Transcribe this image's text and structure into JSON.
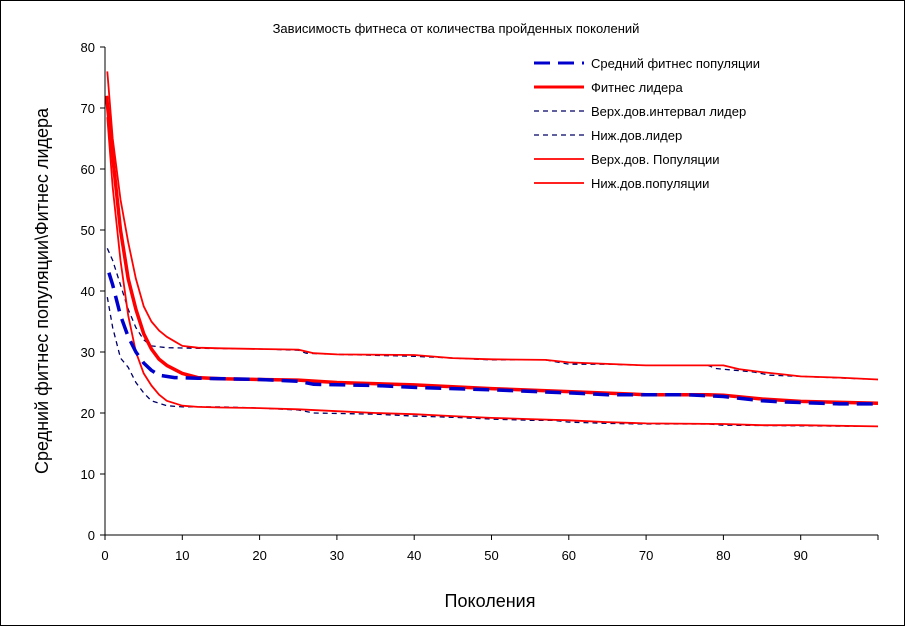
{
  "chart_data": {
    "type": "line",
    "title": "Зависимость фитнеса от количества пройденных поколений",
    "xlabel": "Поколения",
    "ylabel": "Средний фитнес популяции\\Фитнес лидера",
    "xlim": [
      0,
      100
    ],
    "ylim": [
      0,
      80
    ],
    "x_ticks": [
      0,
      10,
      20,
      30,
      40,
      50,
      60,
      70,
      80,
      90
    ],
    "y_ticks": [
      0,
      10,
      20,
      30,
      40,
      50,
      60,
      70,
      80
    ],
    "grid": false,
    "legend_position": "top-right",
    "series": [
      {
        "name": "Средний фитнес популяции",
        "color": "#0000CC",
        "style": "dashed",
        "points": [
          [
            0.5,
            43
          ],
          [
            1,
            41
          ],
          [
            2,
            36
          ],
          [
            3,
            32.5
          ],
          [
            4,
            30
          ],
          [
            5,
            28.2
          ],
          [
            6,
            27
          ],
          [
            7,
            26.2
          ],
          [
            9,
            25.8
          ],
          [
            12,
            25.7
          ],
          [
            20,
            25.5
          ],
          [
            25,
            25.2
          ],
          [
            27,
            24.7
          ],
          [
            35,
            24.5
          ],
          [
            40,
            24.2
          ],
          [
            45,
            24
          ],
          [
            50,
            23.8
          ],
          [
            60,
            23.3
          ],
          [
            65,
            23
          ],
          [
            70,
            23
          ],
          [
            75,
            23
          ],
          [
            80,
            22.7
          ],
          [
            85,
            22
          ],
          [
            88,
            21.8
          ],
          [
            95,
            21.5
          ],
          [
            100,
            21.5
          ]
        ]
      },
      {
        "name": "Фитнес лидера",
        "color": "#FF0000",
        "style": "solid",
        "points": [
          [
            0.2,
            72
          ],
          [
            1,
            62
          ],
          [
            2,
            50
          ],
          [
            3,
            42
          ],
          [
            4,
            37
          ],
          [
            5,
            33
          ],
          [
            6,
            30.5
          ],
          [
            7,
            28.8
          ],
          [
            8,
            27.8
          ],
          [
            10,
            26.5
          ],
          [
            12,
            25.8
          ],
          [
            15,
            25.6
          ],
          [
            20,
            25.5
          ],
          [
            25,
            25.4
          ],
          [
            30,
            25
          ],
          [
            40,
            24.6
          ],
          [
            50,
            24
          ],
          [
            60,
            23.5
          ],
          [
            70,
            23
          ],
          [
            78,
            23
          ],
          [
            80,
            22.9
          ],
          [
            85,
            22.3
          ],
          [
            90,
            21.9
          ],
          [
            100,
            21.6
          ]
        ]
      },
      {
        "name": "Верх.дов.интервал лидер",
        "color": "#000066",
        "style": "dotted",
        "points": [
          [
            0.3,
            47
          ],
          [
            1,
            45
          ],
          [
            2,
            41
          ],
          [
            3,
            37
          ],
          [
            4,
            34
          ],
          [
            5,
            32
          ],
          [
            6,
            31
          ],
          [
            8,
            30.7
          ],
          [
            12,
            30.6
          ],
          [
            20,
            30.5
          ],
          [
            25,
            30.3
          ],
          [
            26,
            29.8
          ],
          [
            30,
            29.6
          ],
          [
            40,
            29.3
          ],
          [
            50,
            28.7
          ],
          [
            57,
            28.7
          ],
          [
            60,
            28
          ],
          [
            65,
            28
          ],
          [
            70,
            27.8
          ],
          [
            78,
            27.8
          ],
          [
            79,
            27.3
          ],
          [
            84,
            26.7
          ],
          [
            86,
            26.2
          ],
          [
            90,
            26
          ],
          [
            100,
            25.5
          ]
        ]
      },
      {
        "name": "Ниж.дов.лидер",
        "color": "#000066",
        "style": "dotted",
        "points": [
          [
            0.3,
            39
          ],
          [
            1,
            34
          ],
          [
            2,
            29
          ],
          [
            3,
            27.5
          ],
          [
            4,
            25
          ],
          [
            5,
            23.3
          ],
          [
            6,
            22
          ],
          [
            8,
            21.2
          ],
          [
            10,
            21
          ],
          [
            15,
            21
          ],
          [
            20,
            20.8
          ],
          [
            25,
            20.5
          ],
          [
            27,
            20
          ],
          [
            35,
            19.8
          ],
          [
            40,
            19.5
          ],
          [
            45,
            19.3
          ],
          [
            50,
            19
          ],
          [
            55,
            18.8
          ],
          [
            58,
            18.8
          ],
          [
            60,
            18.5
          ],
          [
            65,
            18.3
          ],
          [
            70,
            18.2
          ],
          [
            78,
            18.2
          ],
          [
            80,
            18
          ],
          [
            90,
            17.9
          ],
          [
            100,
            17.8
          ]
        ]
      },
      {
        "name": "Верх.дов. Популяции",
        "color": "#FF0000",
        "style": "solid",
        "points": [
          [
            0.3,
            76
          ],
          [
            1,
            65
          ],
          [
            2,
            55
          ],
          [
            3,
            48
          ],
          [
            4,
            42
          ],
          [
            5,
            37.5
          ],
          [
            6,
            35
          ],
          [
            7,
            33.5
          ],
          [
            8,
            32.5
          ],
          [
            10,
            31
          ],
          [
            12,
            30.7
          ],
          [
            15,
            30.6
          ],
          [
            20,
            30.5
          ],
          [
            25,
            30.4
          ],
          [
            27,
            29.8
          ],
          [
            30,
            29.6
          ],
          [
            40,
            29.5
          ],
          [
            45,
            29
          ],
          [
            50,
            28.8
          ],
          [
            57,
            28.7
          ],
          [
            60,
            28.3
          ],
          [
            70,
            27.8
          ],
          [
            80,
            27.8
          ],
          [
            82,
            27.2
          ],
          [
            85,
            26.7
          ],
          [
            88,
            26.3
          ],
          [
            90,
            26
          ],
          [
            95,
            25.8
          ],
          [
            100,
            25.5
          ]
        ]
      },
      {
        "name": "Ниж.дов.популяции",
        "color": "#FF0000",
        "style": "solid",
        "points": [
          [
            0.3,
            68.5
          ],
          [
            1,
            57
          ],
          [
            2,
            45
          ],
          [
            3,
            36
          ],
          [
            4,
            30
          ],
          [
            5,
            26.5
          ],
          [
            6,
            24.5
          ],
          [
            7,
            23
          ],
          [
            8,
            22
          ],
          [
            10,
            21.2
          ],
          [
            12,
            21
          ],
          [
            15,
            20.9
          ],
          [
            20,
            20.8
          ],
          [
            25,
            20.6
          ],
          [
            30,
            20.3
          ],
          [
            35,
            20
          ],
          [
            40,
            19.8
          ],
          [
            45,
            19.5
          ],
          [
            50,
            19.2
          ],
          [
            55,
            19
          ],
          [
            60,
            18.8
          ],
          [
            65,
            18.5
          ],
          [
            70,
            18.3
          ],
          [
            80,
            18.2
          ],
          [
            85,
            18
          ],
          [
            90,
            18
          ],
          [
            100,
            17.8
          ]
        ]
      }
    ]
  }
}
